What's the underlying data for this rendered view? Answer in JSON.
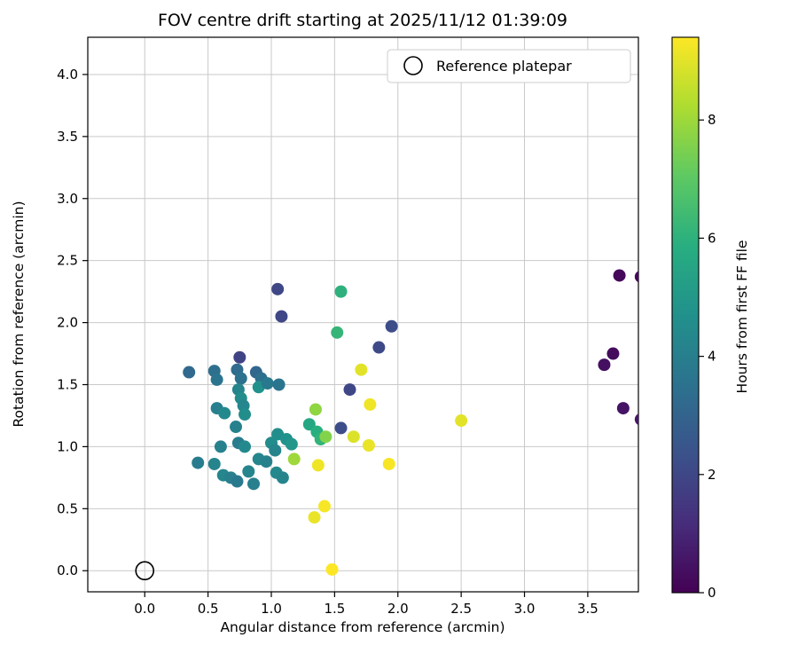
{
  "title": "FOV centre drift starting at 2025/11/12 01:39:09",
  "chart_data": {
    "type": "scatter",
    "title": "FOV centre drift starting at 2025/11/12 01:39:09",
    "xlabel": "Angular distance from reference (arcmin)",
    "ylabel": "Rotation from reference (arcmin)",
    "legend_label": "Reference platepar",
    "grid": true,
    "xlim": [
      -0.45,
      3.9
    ],
    "ylim": [
      -0.17,
      4.3
    ],
    "x_ticks": [
      0.0,
      0.5,
      1.0,
      1.5,
      2.0,
      2.5,
      3.0,
      3.5
    ],
    "x_tick_labels": [
      "0.0",
      "0.5",
      "1.0",
      "1.5",
      "2.0",
      "2.5",
      "3.0",
      "3.5"
    ],
    "y_ticks": [
      0.0,
      0.5,
      1.0,
      1.5,
      2.0,
      2.5,
      3.0,
      3.5,
      4.0
    ],
    "y_tick_labels": [
      "0.0",
      "0.5",
      "1.0",
      "1.5",
      "2.0",
      "2.5",
      "3.0",
      "3.5",
      "4.0"
    ],
    "reference_point": {
      "x": 0.0,
      "y": 0.0
    },
    "colorbar": {
      "label": "Hours from first FF file",
      "ticks": [
        0,
        2,
        4,
        6,
        8
      ],
      "tick_labels": [
        "0",
        "2",
        "4",
        "6",
        "8"
      ],
      "vmin": 0,
      "vmax": 9.4,
      "colormap": "viridis",
      "stops": [
        "#440154",
        "#472d7b",
        "#3b528b",
        "#2c728e",
        "#21918c",
        "#28ae80",
        "#5ec962",
        "#addc30",
        "#fde725"
      ]
    },
    "points_format": "[angular_distance_arcmin, rotation_arcmin, hours_from_first_FF_file]",
    "points": [
      [
        3.75,
        2.38,
        0.2
      ],
      [
        3.7,
        1.75,
        0.3
      ],
      [
        3.63,
        1.66,
        0.4
      ],
      [
        3.78,
        1.31,
        0.5
      ],
      [
        3.92,
        2.37,
        0.2
      ],
      [
        3.92,
        1.22,
        0.6
      ],
      [
        1.05,
        2.27,
        2.0
      ],
      [
        1.08,
        2.05,
        2.0
      ],
      [
        1.95,
        1.97,
        2.2
      ],
      [
        1.85,
        1.8,
        2.1
      ],
      [
        1.62,
        1.46,
        2.0
      ],
      [
        1.55,
        1.15,
        2.2
      ],
      [
        0.75,
        1.72,
        1.9
      ],
      [
        0.35,
        1.6,
        3.2
      ],
      [
        0.55,
        1.61,
        3.4
      ],
      [
        0.57,
        1.54,
        3.6
      ],
      [
        0.42,
        0.87,
        3.9
      ],
      [
        0.55,
        0.86,
        4.2
      ],
      [
        0.57,
        1.31,
        4.0
      ],
      [
        0.63,
        1.27,
        4.4
      ],
      [
        0.6,
        1.0,
        4.1
      ],
      [
        0.62,
        0.77,
        4.3
      ],
      [
        0.68,
        0.75,
        4.0
      ],
      [
        0.73,
        0.72,
        3.8
      ],
      [
        0.73,
        1.62,
        3.3
      ],
      [
        0.76,
        1.55,
        3.5
      ],
      [
        0.74,
        1.46,
        4.2
      ],
      [
        0.76,
        1.39,
        4.5
      ],
      [
        0.78,
        1.33,
        4.3
      ],
      [
        0.79,
        1.26,
        4.6
      ],
      [
        0.72,
        1.16,
        4.1
      ],
      [
        0.74,
        1.03,
        3.9
      ],
      [
        0.79,
        1.0,
        4.4
      ],
      [
        0.82,
        0.8,
        4.2
      ],
      [
        0.86,
        0.7,
        4.0
      ],
      [
        0.88,
        1.6,
        3.1
      ],
      [
        0.92,
        1.55,
        3.4
      ],
      [
        0.9,
        1.48,
        4.7
      ],
      [
        0.97,
        1.51,
        3.8
      ],
      [
        0.9,
        0.9,
        4.3
      ],
      [
        0.96,
        0.88,
        4.1
      ],
      [
        1.0,
        1.03,
        4.5
      ],
      [
        1.03,
        0.97,
        4.2
      ],
      [
        1.06,
        1.5,
        3.6
      ],
      [
        1.05,
        1.1,
        4.6
      ],
      [
        1.04,
        0.79,
        4.4
      ],
      [
        1.09,
        0.75,
        4.2
      ],
      [
        1.12,
        1.06,
        4.7
      ],
      [
        1.16,
        1.02,
        4.9
      ],
      [
        1.55,
        2.25,
        6.0
      ],
      [
        1.52,
        1.92,
        6.2
      ],
      [
        1.3,
        1.18,
        5.6
      ],
      [
        1.36,
        1.12,
        5.9
      ],
      [
        1.39,
        1.06,
        6.1
      ],
      [
        1.35,
        1.3,
        7.8
      ],
      [
        1.18,
        0.9,
        8.0
      ],
      [
        1.43,
        1.08,
        7.6
      ],
      [
        1.71,
        1.62,
        9.0
      ],
      [
        1.78,
        1.34,
        9.2
      ],
      [
        1.65,
        1.08,
        8.9
      ],
      [
        1.77,
        1.01,
        9.1
      ],
      [
        1.93,
        0.86,
        9.3
      ],
      [
        2.5,
        1.21,
        9.0
      ],
      [
        1.37,
        0.85,
        9.2
      ],
      [
        1.42,
        0.52,
        9.3
      ],
      [
        1.34,
        0.43,
        9.1
      ],
      [
        1.48,
        0.01,
        9.4
      ]
    ]
  }
}
